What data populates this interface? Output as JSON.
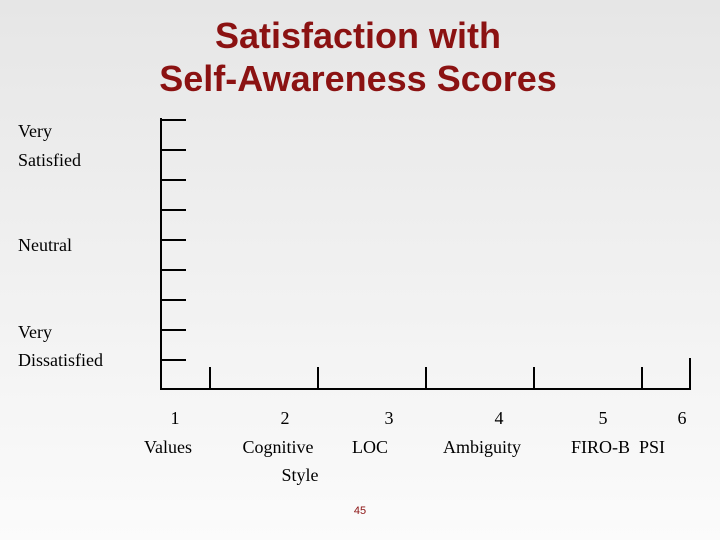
{
  "title": {
    "lines": [
      "Satisfaction with",
      "Self-Awareness Scores"
    ]
  },
  "y_labels": {
    "top": [
      "Very",
      "Satisfied"
    ],
    "middle": "Neutral",
    "bottom": [
      "Very",
      "Dissatisfied"
    ]
  },
  "x_axis": [
    {
      "number": "1",
      "label": [
        "Values"
      ]
    },
    {
      "number": "2",
      "label": [
        "Cognitive",
        "Style"
      ]
    },
    {
      "number": "3",
      "label": [
        "LOC"
      ]
    },
    {
      "number": "4",
      "label": [
        "Ambiguity"
      ]
    },
    {
      "number": "5",
      "label": [
        "FIRO-B  PSI"
      ]
    },
    {
      "number": "6"
    }
  ],
  "page_number": "45"
}
